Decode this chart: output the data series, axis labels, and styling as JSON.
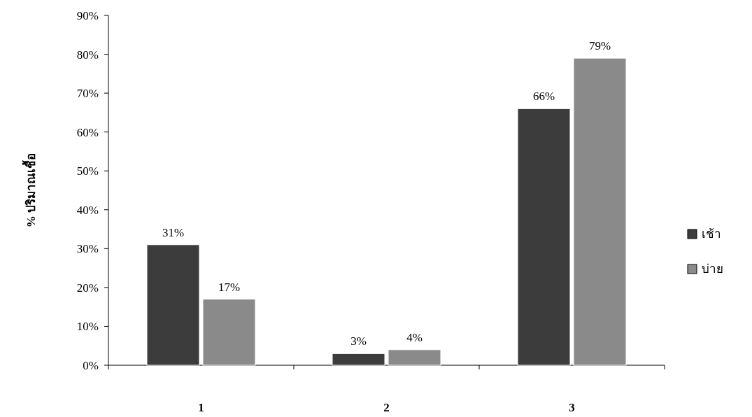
{
  "chart_data": {
    "type": "bar",
    "ylabel": "% ปริมาณเชื้อ",
    "categories": [
      "1",
      "2",
      "3"
    ],
    "series": [
      {
        "name": "เช้า",
        "color": "#3c3c3c",
        "values": [
          31,
          3,
          66
        ]
      },
      {
        "name": "บ่าย",
        "color": "#8a8a8a",
        "values": [
          17,
          4,
          79
        ]
      }
    ],
    "ylim": [
      0,
      90
    ],
    "yticks": [
      {
        "value": 0,
        "label": "0%"
      },
      {
        "value": 10,
        "label": "10%"
      },
      {
        "value": 20,
        "label": "20%"
      },
      {
        "value": 30,
        "label": "30%"
      },
      {
        "value": 40,
        "label": "40%"
      },
      {
        "value": 50,
        "label": "50%"
      },
      {
        "value": 60,
        "label": "60%"
      },
      {
        "value": 70,
        "label": "70%"
      },
      {
        "value": 80,
        "label": "80%"
      },
      {
        "value": 90,
        "label": "90%"
      }
    ],
    "value_labels": [
      [
        "31%",
        "3%",
        "66%"
      ],
      [
        "17%",
        "4%",
        "79%"
      ]
    ],
    "legend": "right",
    "grid": false
  }
}
